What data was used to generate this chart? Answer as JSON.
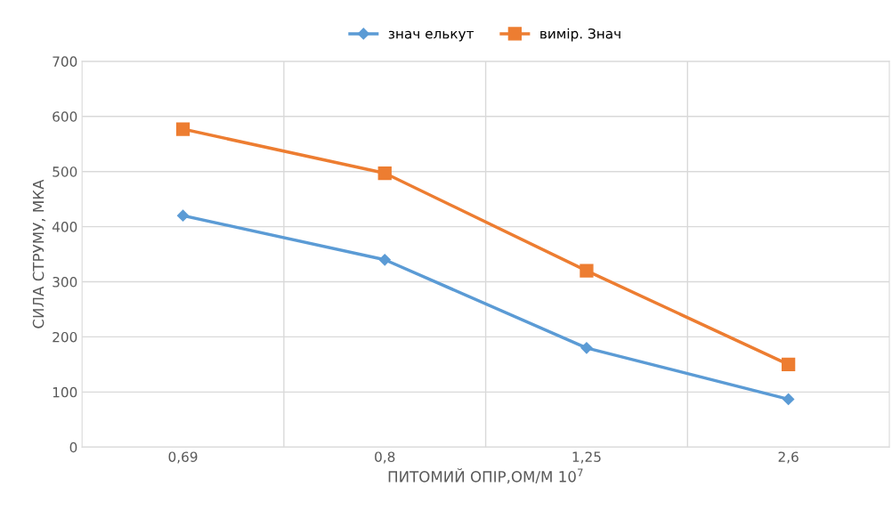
{
  "chart_data": {
    "type": "line",
    "xlabel": "ПИТОМИЙ ОПІР,ОМ/М 10$^{7}$",
    "ylabel": "СИЛА СТРУМУ, МКА",
    "categories": [
      "0,69",
      "0,8",
      "1,25",
      "2,6"
    ],
    "series": [
      {
        "name": "знач елькут",
        "color": "#5b9bd5",
        "values": [
          420,
          340,
          180,
          87
        ],
        "marker": "diamond"
      },
      {
        "name": "вимір. Знач",
        "color": "#ed7d31",
        "values": [
          577,
          497,
          320,
          150
        ],
        "marker": "square"
      }
    ],
    "ylim": [
      0,
      700
    ],
    "yticks": [
      0,
      100,
      200,
      300,
      400,
      500,
      600,
      700
    ],
    "grid": true,
    "legend": "top",
    "line_style": "solid"
  }
}
